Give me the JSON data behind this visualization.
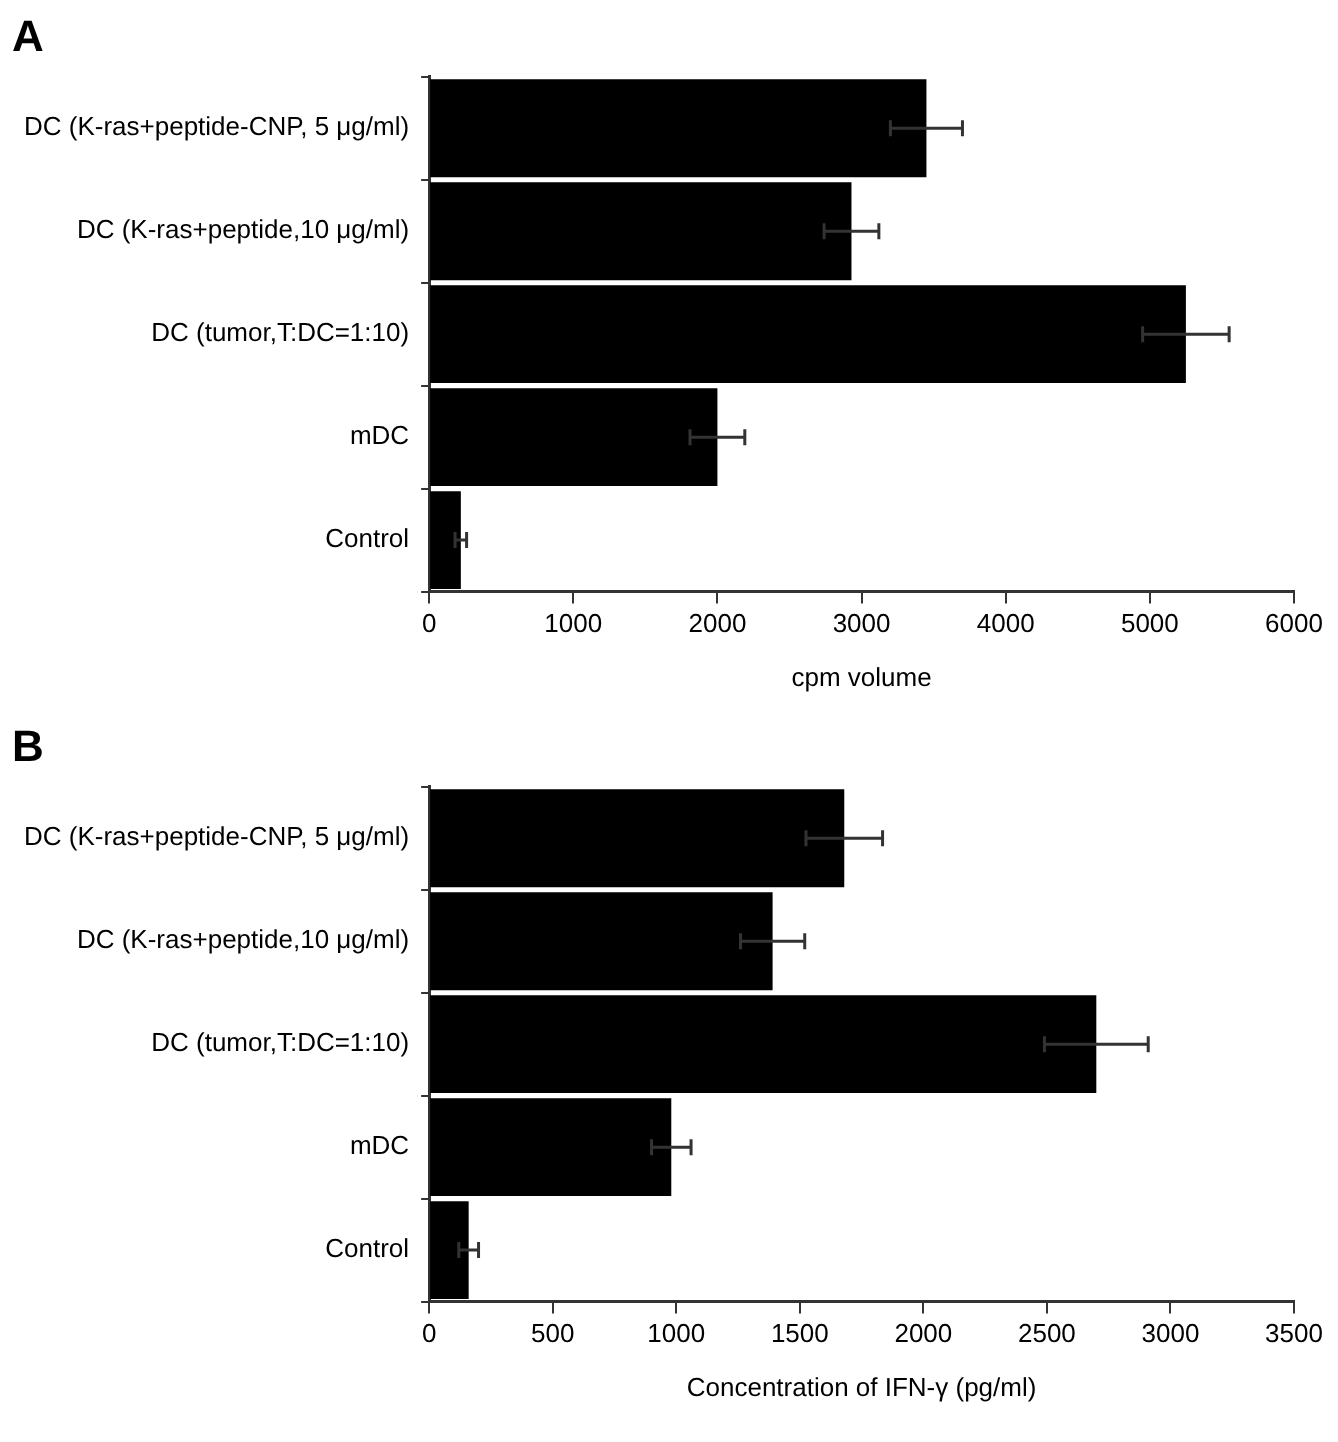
{
  "chart_data": [
    {
      "type": "bar",
      "orientation": "horizontal",
      "title": "A",
      "xlabel": "cpm volume",
      "categories": [
        "DC (K-ras+peptide-CNP, 5 μg/ml)",
        "DC (K-ras+peptide,10 μg/ml)",
        "DC (tumor,T:DC=1:10)",
        "mDC",
        "Control"
      ],
      "values": [
        3450,
        2930,
        5250,
        2000,
        220
      ],
      "errors": [
        250,
        190,
        300,
        190,
        40
      ],
      "color": "#000000",
      "xlim": [
        0,
        6000
      ],
      "xticks": [
        0,
        1000,
        2000,
        3000,
        4000,
        5000,
        6000
      ],
      "grid": false,
      "legend": false
    },
    {
      "type": "bar",
      "orientation": "horizontal",
      "title": "B",
      "xlabel": "Concentration of IFN-γ (pg/ml)",
      "categories": [
        "DC (K-ras+peptide-CNP, 5 μg/ml)",
        "DC (K-ras+peptide,10 μg/ml)",
        "DC (tumor,T:DC=1:10)",
        "mDC",
        "Control"
      ],
      "values": [
        1680,
        1390,
        2700,
        980,
        160
      ],
      "errors": [
        155,
        130,
        210,
        80,
        40
      ],
      "color": "#000000",
      "xlim": [
        0,
        3500
      ],
      "xticks": [
        0,
        500,
        1000,
        1500,
        2000,
        2500,
        3000,
        3500
      ],
      "grid": false,
      "legend": false
    }
  ]
}
